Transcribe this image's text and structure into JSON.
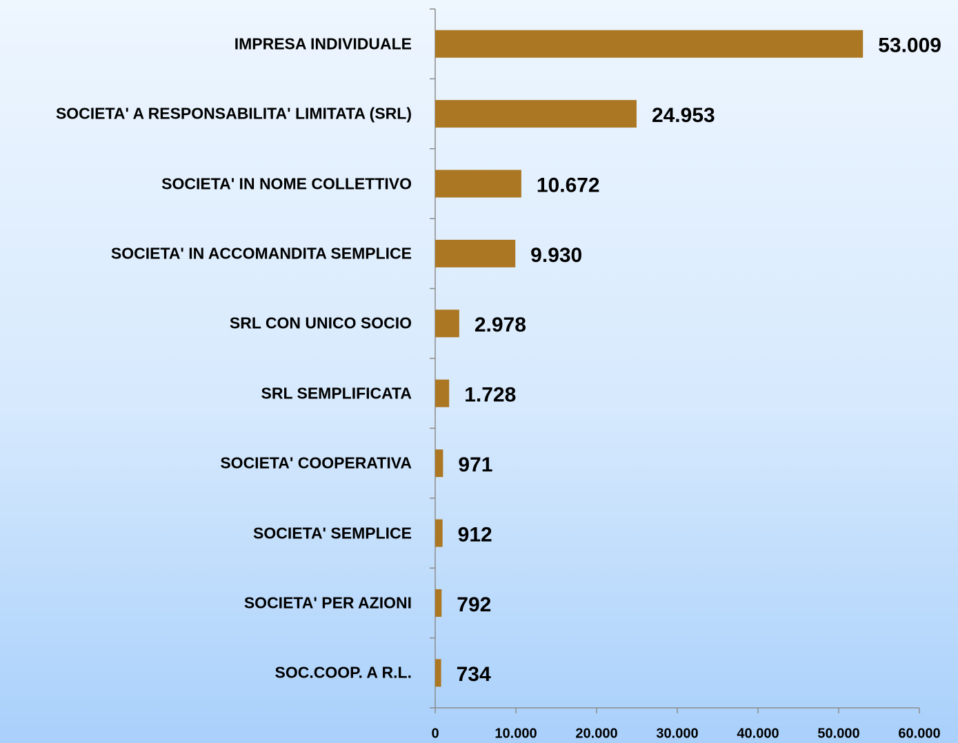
{
  "chart_data": {
    "type": "barh",
    "categories": [
      "IMPRESA INDIVIDUALE",
      "SOCIETA' A RESPONSABILITA' LIMITATA (SRL)",
      "SOCIETA' IN NOME COLLETTIVO",
      "SOCIETA' IN ACCOMANDITA SEMPLICE",
      "SRL CON UNICO SOCIO",
      "SRL SEMPLIFICATA",
      "SOCIETA' COOPERATIVA",
      "SOCIETA' SEMPLICE",
      "SOCIETA' PER AZIONI",
      "SOC.COOP. A R.L."
    ],
    "values": [
      53009,
      24953,
      10672,
      9930,
      2978,
      1728,
      971,
      912,
      792,
      734
    ],
    "value_labels": [
      "53.009",
      "24.953",
      "10.672",
      "9.930",
      "2.978",
      "1.728",
      "971",
      "912",
      "792",
      "734"
    ],
    "color": "#ab7722",
    "xlim": [
      0,
      60000
    ],
    "xticks": [
      0,
      {
        "value": 10000,
        "label": "10.000"
      },
      {
        "value": 20000,
        "label": "20.000"
      },
      {
        "value": 30000,
        "label": "30.000"
      },
      {
        "value": 40000,
        "label": "40.000"
      },
      {
        "value": 50000,
        "label": "50.000"
      },
      {
        "value": 60000,
        "label": "60.000"
      }
    ],
    "grid": false
  }
}
